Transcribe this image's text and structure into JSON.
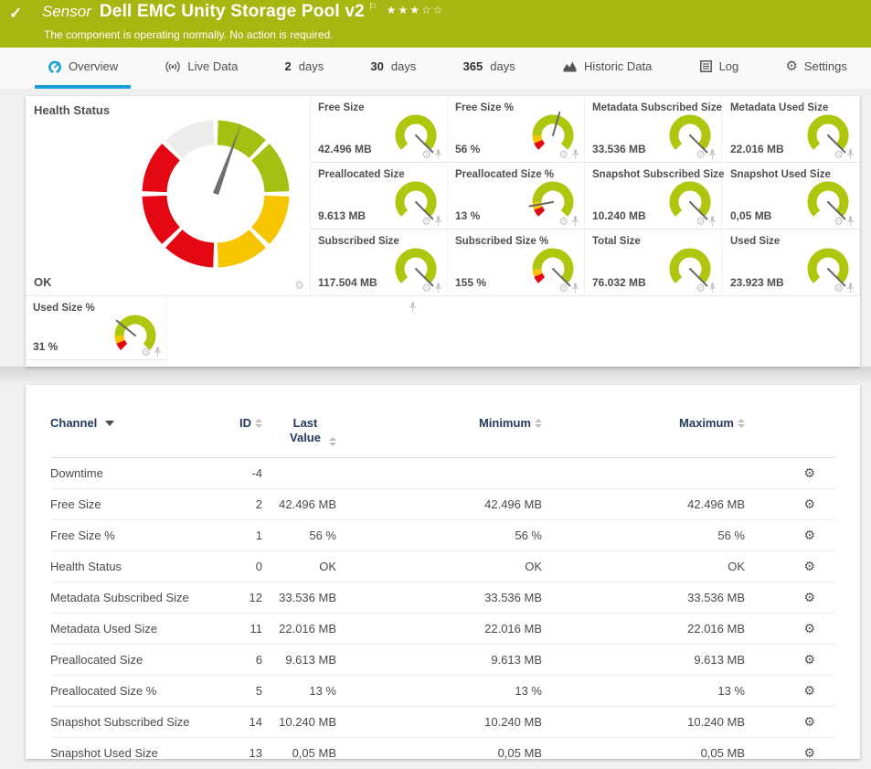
{
  "header": {
    "type_label": "Sensor",
    "title": "Dell EMC Unity Storage Pool v2",
    "status_message": "The component is operating normally. No action is required.",
    "check_glyph": "✓",
    "flag_glyph": "⚐",
    "stars": "★★★☆☆",
    "banner_color": "#a6b712"
  },
  "tabs": [
    {
      "icon": "gauge",
      "label": "Overview",
      "active": true
    },
    {
      "icon": "broadcast",
      "label": "Live Data"
    },
    {
      "num": "2",
      "label": "days"
    },
    {
      "num": "30",
      "label": "days"
    },
    {
      "num": "365",
      "label": "days"
    },
    {
      "icon": "chart",
      "label": "Historic Data"
    },
    {
      "icon": "list",
      "label": "Log"
    },
    {
      "icon": "gear",
      "label": "Settings"
    }
  ],
  "overview": {
    "health_panel": {
      "title": "Health Status",
      "status": "OK",
      "needle_angle_deg": 290
    },
    "gauges": [
      {
        "label": "Free Size",
        "value": "42.496 MB",
        "type": "plain"
      },
      {
        "label": "Free Size %",
        "value": "56 %",
        "type": "percent",
        "percent": 56
      },
      {
        "label": "Metadata Subscribed Size",
        "value": "33.536 MB",
        "type": "plain"
      },
      {
        "label": "Metadata Used Size",
        "value": "22.016 MB",
        "type": "plain"
      },
      {
        "label": "Preallocated Size",
        "value": "9.613 MB",
        "type": "plain"
      },
      {
        "label": "Preallocated Size %",
        "value": "13 %",
        "type": "percent",
        "percent": 13
      },
      {
        "label": "Snapshot Subscribed Size",
        "value": "10.240 MB",
        "type": "plain"
      },
      {
        "label": "Snapshot Used Size",
        "value": "0,05 MB",
        "type": "plain"
      },
      {
        "label": "Subscribed Size",
        "value": "117.504 MB",
        "type": "plain"
      },
      {
        "label": "Subscribed Size %",
        "value": "155 %",
        "type": "percent",
        "percent": 155
      },
      {
        "label": "Total Size",
        "value": "76.032 MB",
        "type": "plain"
      },
      {
        "label": "Used Size",
        "value": "23.923 MB",
        "type": "plain"
      },
      {
        "label": "Used Size %",
        "value": "31 %",
        "type": "percent",
        "percent": 31
      }
    ],
    "colors": {
      "lime": "#aec70e",
      "segment_green": "#a3c013",
      "segment_yellow": "#f6c500",
      "segment_red": "#e30613",
      "segment_gray": "#ececec",
      "needle": "#6e6e6e",
      "accent_blue": "#1b9dd9"
    }
  },
  "table": {
    "headers": [
      {
        "label": "Channel",
        "sort": "desc"
      },
      {
        "label": "ID",
        "sort": "none"
      },
      {
        "label": "Last Value",
        "sort": "none"
      },
      {
        "label": "Minimum",
        "sort": "none"
      },
      {
        "label": "Maximum",
        "sort": "none"
      }
    ],
    "rows": [
      {
        "channel": "Downtime",
        "id": "-4",
        "last": "",
        "min": "",
        "max": ""
      },
      {
        "channel": "Free Size",
        "id": "2",
        "last": "42.496 MB",
        "min": "42.496 MB",
        "max": "42.496 MB"
      },
      {
        "channel": "Free Size %",
        "id": "1",
        "last": "56 %",
        "min": "56 %",
        "max": "56 %"
      },
      {
        "channel": "Health Status",
        "id": "0",
        "last": "OK",
        "min": "OK",
        "max": "OK"
      },
      {
        "channel": "Metadata Subscribed Size",
        "id": "12",
        "last": "33.536 MB",
        "min": "33.536 MB",
        "max": "33.536 MB"
      },
      {
        "channel": "Metadata Used Size",
        "id": "11",
        "last": "22.016 MB",
        "min": "22.016 MB",
        "max": "22.016 MB"
      },
      {
        "channel": "Preallocated Size",
        "id": "6",
        "last": "9.613 MB",
        "min": "9.613 MB",
        "max": "9.613 MB"
      },
      {
        "channel": "Preallocated Size %",
        "id": "5",
        "last": "13 %",
        "min": "13 %",
        "max": "13 %"
      },
      {
        "channel": "Snapshot Subscribed Size",
        "id": "14",
        "last": "10.240 MB",
        "min": "10.240 MB",
        "max": "10.240 MB"
      },
      {
        "channel": "Snapshot Used Size",
        "id": "13",
        "last": "0,05 MB",
        "min": "0,05 MB",
        "max": "0,05 MB"
      }
    ]
  }
}
